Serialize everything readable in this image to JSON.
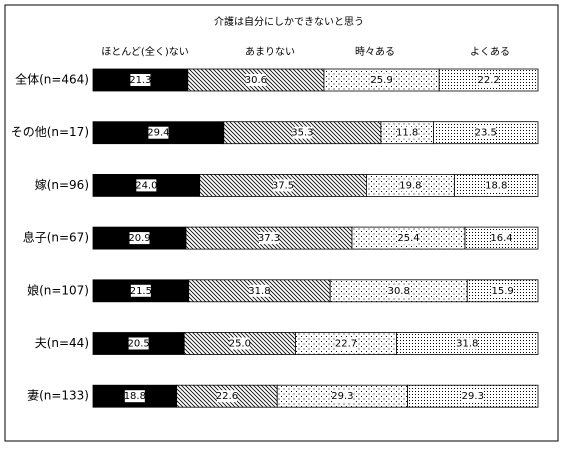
{
  "chart_data": {
    "type": "stacked-bar-100",
    "title": "介護は自分にしかできないと思う",
    "categories": [
      "全体(n=464)",
      "その他(n=17)",
      "嫁(n=96)",
      "息子(n=67)",
      "娘(n=107)",
      "夫(n=44)",
      "妻(n=133)"
    ],
    "series": [
      {
        "name": "ほとんど(全く)ない",
        "color": "#000000",
        "pattern": "solid",
        "values": [
          21.3,
          29.4,
          24.0,
          20.9,
          21.5,
          20.5,
          18.8
        ],
        "value_labels": [
          "21.3",
          "29.4",
          "24.0",
          "20.9",
          "21.5",
          "20.5",
          "18.8"
        ]
      },
      {
        "name": "あまりない",
        "color": "#000000",
        "pattern": "hatch",
        "values": [
          30.6,
          35.3,
          37.5,
          37.3,
          31.8,
          25.0,
          22.6
        ],
        "value_labels": [
          "30.6",
          "35.3",
          "37.5",
          "37.3",
          "31.8",
          "25.0",
          "22.6"
        ]
      },
      {
        "name": "時々ある",
        "color": "#000000",
        "pattern": "dots",
        "values": [
          25.9,
          11.8,
          19.8,
          25.4,
          30.8,
          22.7,
          29.3
        ],
        "value_labels": [
          "25.9",
          "11.8",
          "19.8",
          "25.4",
          "30.8",
          "22.7",
          "29.3"
        ]
      },
      {
        "name": "よくある",
        "color": "#000000",
        "pattern": "dots-dense",
        "values": [
          22.2,
          23.5,
          18.8,
          16.4,
          15.9,
          31.8,
          29.3
        ],
        "value_labels": [
          "22.2",
          "23.5",
          "18.8",
          "16.4",
          "15.9",
          "31.8",
          "29.3"
        ]
      }
    ]
  }
}
